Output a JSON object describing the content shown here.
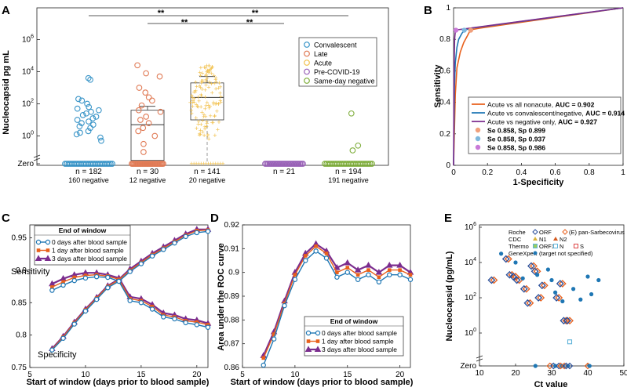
{
  "colors": {
    "convalescent": "#3a95c8",
    "late": "#e07a55",
    "acute": "#f2c14e",
    "pre": "#9a63b8",
    "same": "#7fae3c",
    "blue": "#1f77b4",
    "orange": "#e8601c",
    "purple": "#7b2d8e",
    "gray": "#555555",
    "acuteMean": "#aaaaaa"
  },
  "chart_data": [
    {
      "panel": "A",
      "type": "scatter",
      "ylabel": "Nucleocapsid  pg mL",
      "ylog": true,
      "ytick_labels": [
        "Zero",
        "10^0",
        "10^2",
        "10^4",
        "10^6"
      ],
      "categories": [
        "Convalescent",
        "Late",
        "Acute",
        "Pre-COVID-19",
        "Same-day negative"
      ],
      "counts": [
        "n = 182",
        "n = 30",
        "n = 141",
        "n = 21",
        "n = 194"
      ],
      "negatives": [
        "160 negative",
        "12 negative",
        "20 negative",
        "",
        "191 negative"
      ],
      "legend": [
        "Convalescent",
        "Late",
        "Acute",
        "Pre-COVID-19",
        "Same-day negative"
      ],
      "significance": [
        "**",
        "**",
        "**",
        "**"
      ],
      "box_late": {
        "q1": 0.03,
        "median": 5,
        "q3": 40,
        "whisker_low": 0.03,
        "whisker_high": 70
      },
      "box_acute": {
        "q1": 10,
        "median": 250,
        "q3": 2000,
        "whisker_low": 10,
        "whisker_high": 5000
      },
      "points_log10": {
        "Convalescent": [
          3.6,
          3.5,
          2.3,
          2.2,
          2.0,
          1.8,
          1.7,
          1.6,
          1.5,
          1.4,
          1.3,
          1.2,
          1.1,
          1.0,
          0.9,
          0.8,
          0.7,
          0.6,
          0.5,
          0.3,
          0.2,
          0.1,
          -0.1,
          -0.3
        ],
        "Late": [
          4.4,
          3.9,
          3.7,
          3.0,
          2.7,
          2.4,
          2.2,
          1.9,
          1.6,
          1.5,
          1.2,
          1.0,
          0.8,
          0.5,
          0.3,
          0.0,
          -0.5,
          -1.0
        ],
        "Same-day negative": [
          1.4,
          -0.6,
          -0.9
        ]
      }
    },
    {
      "panel": "B",
      "type": "line",
      "xlabel": "1-Specificity",
      "ylabel": "Sensitivity",
      "xlim": [
        0,
        1
      ],
      "ylim": [
        0,
        1
      ],
      "xticks": [
        "0",
        "0.2",
        "0.4",
        "0.6",
        "0.8",
        "1"
      ],
      "yticks": [
        "0",
        "0.2",
        "0.4",
        "0.6",
        "0.8",
        "1"
      ],
      "series": [
        {
          "name": "Acute vs all nonacute",
          "auc_label": "AUC = 0.902",
          "x": [
            0,
            0.01,
            0.02,
            0.04,
            0.06,
            0.08,
            0.1,
            0.15,
            1
          ],
          "y": [
            0,
            0.45,
            0.62,
            0.72,
            0.78,
            0.82,
            0.86,
            0.87,
            1
          ]
        },
        {
          "name": "Acute vs convalescent/negative",
          "auc_label": "AUC = 0.914",
          "x": [
            0,
            0.005,
            0.01,
            0.02,
            0.03,
            0.05,
            0.07,
            0.1,
            1
          ],
          "y": [
            0,
            0.5,
            0.65,
            0.75,
            0.8,
            0.84,
            0.86,
            0.87,
            1
          ]
        },
        {
          "name": "Acute vs negative only",
          "auc_label": "AUC = 0.927",
          "x": [
            0,
            0.003,
            0.006,
            0.01,
            0.014,
            0.02,
            1
          ],
          "y": [
            0,
            0.6,
            0.8,
            0.85,
            0.858,
            0.86,
            1
          ]
        }
      ],
      "operating_points": [
        {
          "label": "Se 0.858, Sp 0.899",
          "x": 0.101,
          "y": 0.858
        },
        {
          "label": "Se 0.858, Sp 0.937",
          "x": 0.063,
          "y": 0.858
        },
        {
          "label": "Se 0.858, Sp 0.986",
          "x": 0.014,
          "y": 0.858
        }
      ]
    },
    {
      "panel": "C",
      "type": "line",
      "xlabel": "Start of window (days prior to blood sample)",
      "ylabel": "",
      "xlim": [
        5,
        21
      ],
      "ylim": [
        0.75,
        0.97
      ],
      "xticks": [
        "5",
        "10",
        "15",
        "20"
      ],
      "yticks": [
        "0.75",
        "0.8",
        "0.85",
        "0.9",
        "0.95"
      ],
      "legend_title": "End of window",
      "annotations": [
        "Sensitivity",
        "Specificity"
      ],
      "x": [
        7,
        8,
        9,
        10,
        11,
        12,
        13,
        14,
        15,
        16,
        17,
        18,
        19,
        20,
        21
      ],
      "series": [
        {
          "name": "0 days after blood sample",
          "sensitivity": [
            0.869,
            0.877,
            0.884,
            0.888,
            0.89,
            0.889,
            0.883,
            0.853,
            0.85,
            0.84,
            0.828,
            0.825,
            0.819,
            0.816,
            0.812
          ],
          "specificity": [
            0.777,
            0.795,
            0.817,
            0.837,
            0.855,
            0.873,
            0.883,
            0.898,
            0.91,
            0.922,
            0.932,
            0.942,
            0.952,
            0.958,
            0.96
          ]
        },
        {
          "name": "1 day after blood sample",
          "sensitivity": [
            0.874,
            0.882,
            0.889,
            0.892,
            0.893,
            0.891,
            0.886,
            0.856,
            0.853,
            0.844,
            0.831,
            0.828,
            0.822,
            0.82,
            0.816
          ],
          "specificity": [
            0.778,
            0.797,
            0.819,
            0.839,
            0.857,
            0.875,
            0.885,
            0.9,
            0.912,
            0.924,
            0.934,
            0.944,
            0.954,
            0.961,
            0.962
          ]
        },
        {
          "name": "3 days after blood sample",
          "sensitivity": [
            0.879,
            0.887,
            0.893,
            0.896,
            0.896,
            0.893,
            0.888,
            0.859,
            0.856,
            0.847,
            0.834,
            0.831,
            0.825,
            0.823,
            0.818
          ],
          "specificity": [
            0.779,
            0.798,
            0.82,
            0.84,
            0.858,
            0.876,
            0.886,
            0.902,
            0.914,
            0.926,
            0.936,
            0.946,
            0.956,
            0.963,
            0.963
          ]
        }
      ]
    },
    {
      "panel": "D",
      "type": "line",
      "xlabel": "Start of window (days prior to blood sample)",
      "ylabel": "Area under the ROC curve",
      "xlim": [
        5,
        21
      ],
      "ylim": [
        0.86,
        0.92
      ],
      "xticks": [
        "5",
        "10",
        "15",
        "20"
      ],
      "yticks": [
        "0.86",
        "0.87",
        "0.88",
        "0.89",
        "0.9",
        "0.91",
        "0.92"
      ],
      "legend_title": "End of window",
      "x": [
        7,
        8,
        9,
        10,
        11,
        12,
        13,
        14,
        15,
        16,
        17,
        18,
        19,
        20,
        21
      ],
      "series": [
        {
          "name": "0 days after blood sample",
          "values": [
            0.861,
            0.872,
            0.886,
            0.897,
            0.905,
            0.909,
            0.906,
            0.898,
            0.9,
            0.897,
            0.899,
            0.896,
            0.899,
            0.899,
            0.897
          ]
        },
        {
          "name": "1 day after blood sample",
          "values": [
            0.864,
            0.874,
            0.887,
            0.899,
            0.907,
            0.911,
            0.908,
            0.9,
            0.902,
            0.899,
            0.901,
            0.898,
            0.901,
            0.901,
            0.899
          ]
        },
        {
          "name": "3 days after blood sample",
          "values": [
            0.865,
            0.875,
            0.888,
            0.9,
            0.908,
            0.912,
            0.909,
            0.902,
            0.904,
            0.901,
            0.903,
            0.9,
            0.903,
            0.903,
            0.9
          ]
        }
      ]
    },
    {
      "panel": "E",
      "type": "scatter",
      "xlabel": "Ct value",
      "ylabel": "Nucleocapsid (pg/mL)",
      "xlim": [
        10,
        50
      ],
      "ylog": true,
      "xticks": [
        "10",
        "20",
        "30",
        "40",
        "50"
      ],
      "ytick_labels": [
        "Zero",
        "10^0",
        "10^2",
        "10^4",
        "10^6"
      ],
      "legend": {
        "roche": [
          "Roche",
          "ORF",
          "(E) pan-Sarbecovirus"
        ],
        "cdc": [
          "CDC",
          "N1",
          "N2"
        ],
        "thermo": [
          "Thermo",
          "ORF1",
          "N",
          "S"
        ],
        "genexpert": [
          "GeneXpert",
          "(target not specified)"
        ]
      },
      "points": [
        {
          "ct": 14,
          "log10": 3.0,
          "kind": "roche"
        },
        {
          "ct": 18,
          "log10": 4.2,
          "kind": "roche"
        },
        {
          "ct": 19,
          "log10": 3.3,
          "kind": "roche"
        },
        {
          "ct": 20,
          "log10": 3.2,
          "kind": "roche"
        },
        {
          "ct": 21,
          "log10": 3.0,
          "kind": "roche"
        },
        {
          "ct": 23,
          "log10": 2.5,
          "kind": "roche"
        },
        {
          "ct": 24,
          "log10": 1.7,
          "kind": "roche"
        },
        {
          "ct": 25,
          "log10": 3.8,
          "kind": "roche"
        },
        {
          "ct": 26,
          "log10": 3.5,
          "kind": "roche"
        },
        {
          "ct": 27,
          "log10": 2.0,
          "kind": "roche"
        },
        {
          "ct": 28,
          "log10": 2.7,
          "kind": "roche"
        },
        {
          "ct": 32,
          "log10": 2.0,
          "kind": "roche"
        },
        {
          "ct": 33,
          "log10": 2.8,
          "kind": "roche"
        },
        {
          "ct": 34,
          "log10": 0.7,
          "kind": "roche"
        },
        {
          "ct": 35,
          "log10": 0.7,
          "kind": "roche"
        },
        {
          "ct": 16,
          "log10": 4.5,
          "kind": "genexpert"
        },
        {
          "ct": 20,
          "log10": 4.0,
          "kind": "genexpert"
        },
        {
          "ct": 22,
          "log10": 3.1,
          "kind": "genexpert"
        },
        {
          "ct": 26,
          "log10": 3.3,
          "kind": "genexpert"
        },
        {
          "ct": 29,
          "log10": 3.6,
          "kind": "genexpert"
        },
        {
          "ct": 30,
          "log10": 3.0,
          "kind": "genexpert"
        },
        {
          "ct": 31,
          "log10": 2.3,
          "kind": "genexpert"
        },
        {
          "ct": 33,
          "log10": 1.8,
          "kind": "genexpert"
        },
        {
          "ct": 36,
          "log10": 2.5,
          "kind": "genexpert"
        },
        {
          "ct": 38,
          "log10": 1.9,
          "kind": "genexpert"
        },
        {
          "ct": 40,
          "log10": 3.2,
          "kind": "genexpert"
        },
        {
          "ct": 41,
          "log10": 2.2,
          "kind": "genexpert"
        },
        {
          "ct": 43,
          "log10": 3.0,
          "kind": "genexpert"
        },
        {
          "ct": 35,
          "log10": -0.5,
          "kind": "thermo"
        }
      ],
      "zero_ct": [
        25.5,
        29.5,
        30.5,
        31,
        32,
        32.5,
        33,
        33.5,
        34,
        34.5,
        35,
        40,
        40.5
      ]
    }
  ],
  "panels": {
    "a": "A",
    "b": "B",
    "c": "C",
    "d": "D",
    "e": "E"
  }
}
